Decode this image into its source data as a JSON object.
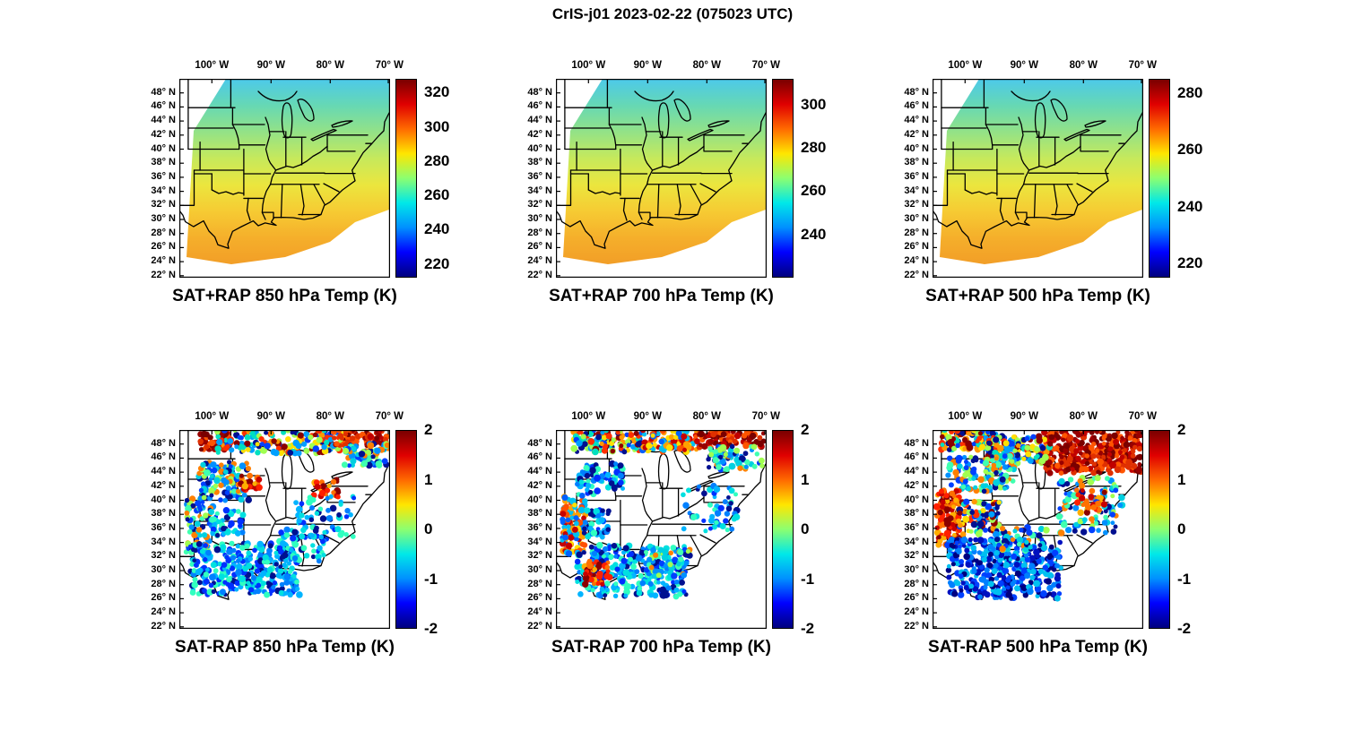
{
  "title": "CrIS-j01 2023-02-22 (075023 UTC)",
  "axes": {
    "lon_ticks": [
      "100° W",
      "90° W",
      "80° W",
      "70° W"
    ],
    "lat_ticks": [
      "48° N",
      "46° N",
      "44° N",
      "42° N",
      "40° N",
      "38° N",
      "36° N",
      "34° N",
      "32° N",
      "30° N",
      "28° N",
      "26° N",
      "24° N",
      "22° N"
    ]
  },
  "colors": {
    "jet": [
      "#7a0000",
      "#e00000",
      "#ff6a00",
      "#ffe600",
      "#8cff70",
      "#00e8e8",
      "#0090ff",
      "#0000ff",
      "#00007f"
    ],
    "field": [
      "#4cc9ea",
      "#66d8b4",
      "#93e287",
      "#c6e95c",
      "#ebe63e",
      "#f6cb33",
      "#f5af2b",
      "#f29e27"
    ],
    "palettes": {
      "warm": [
        "#8b0000",
        "#c80000",
        "#ff2000",
        "#ff7000",
        "#ffae00"
      ],
      "warm_dark": [
        "#7a0000",
        "#990000",
        "#c00000",
        "#e03000",
        "#ff5500"
      ],
      "cold": [
        "#001090",
        "#0030ff",
        "#0080ff",
        "#00b4ff",
        "#00e0e0",
        "#30ffc0"
      ],
      "cold_dark": [
        "#000080",
        "#0010c0",
        "#0040ff",
        "#0080ff",
        "#00c0f0"
      ],
      "mixed": [
        "#8b0000",
        "#ff3000",
        "#ff9900",
        "#ffe000",
        "#a0ff50",
        "#00e0c0",
        "#00a0ff",
        "#0040ff",
        "#001090"
      ],
      "mixed_cold": [
        "#0040ff",
        "#0090ff",
        "#00d0e0",
        "#40ffb0",
        "#a0ff50",
        "#001090",
        "#ff8000"
      ],
      "mixed_warm": [
        "#c80000",
        "#ff5000",
        "#ffa000",
        "#00c0f0",
        "#0060ff",
        "#ffe000"
      ]
    }
  },
  "chart_data": {
    "type": "heatmap",
    "figure_title": "CrIS-j01 2023-02-22 (075023 UTC)",
    "lon_range_deg_w": [
      105.5,
      70
    ],
    "lat_range_deg_n": [
      22,
      50
    ],
    "panels": [
      {
        "kind": "field",
        "title": "SAT+RAP 850 hPa Temp (K)",
        "colorbar": {
          "ticks": [
            320,
            300,
            280,
            260,
            240,
            220
          ],
          "range": [
            212,
            328
          ],
          "units": "K"
        }
      },
      {
        "kind": "field",
        "title": "SAT+RAP 700 hPa Temp (K)",
        "colorbar": {
          "ticks": [
            300,
            280,
            260,
            240
          ],
          "range": [
            220,
            312
          ],
          "units": "K"
        }
      },
      {
        "kind": "field",
        "title": "SAT+RAP 500 hPa Temp (K)",
        "colorbar": {
          "ticks": [
            280,
            260,
            240,
            220
          ],
          "range": [
            215,
            285
          ],
          "units": "K"
        }
      },
      {
        "kind": "scatter",
        "title": "SAT-RAP 850 hPa Temp (K)",
        "colorbar": {
          "ticks": [
            2,
            1,
            0,
            -1,
            -2
          ],
          "range": [
            -2,
            2
          ],
          "units": "K"
        },
        "regions": [
          {
            "x": 0.1,
            "y": 0.01,
            "w": 0.14,
            "h": 0.09,
            "palette": "warm_dark",
            "count": 60
          },
          {
            "x": 0.18,
            "y": 0.0,
            "w": 0.6,
            "h": 0.12,
            "palette": "mixed",
            "count": 170
          },
          {
            "x": 0.73,
            "y": 0.0,
            "w": 0.26,
            "h": 0.08,
            "palette": "warm_dark",
            "count": 80
          },
          {
            "x": 0.78,
            "y": 0.07,
            "w": 0.21,
            "h": 0.11,
            "palette": "mixed_cold",
            "count": 70
          },
          {
            "x": 0.09,
            "y": 0.16,
            "w": 0.24,
            "h": 0.2,
            "palette": "mixed_cold",
            "count": 110
          },
          {
            "x": 0.29,
            "y": 0.22,
            "w": 0.09,
            "h": 0.08,
            "palette": "warm",
            "count": 28
          },
          {
            "x": 0.03,
            "y": 0.34,
            "w": 0.13,
            "h": 0.28,
            "palette": "mixed_cold",
            "count": 80
          },
          {
            "x": 0.15,
            "y": 0.4,
            "w": 0.16,
            "h": 0.13,
            "palette": "cold",
            "count": 45
          },
          {
            "x": 0.63,
            "y": 0.25,
            "w": 0.13,
            "h": 0.09,
            "palette": "warm",
            "count": 26
          },
          {
            "x": 0.55,
            "y": 0.33,
            "w": 0.28,
            "h": 0.22,
            "palette": "cold",
            "count": 55
          },
          {
            "x": 0.05,
            "y": 0.57,
            "w": 0.52,
            "h": 0.26,
            "palette": "cold",
            "count": 330
          },
          {
            "x": 0.47,
            "y": 0.5,
            "w": 0.22,
            "h": 0.16,
            "palette": "cold",
            "count": 55
          }
        ]
      },
      {
        "kind": "scatter",
        "title": "SAT-RAP 700 hPa Temp (K)",
        "colorbar": {
          "ticks": [
            2,
            1,
            0,
            -1,
            -2
          ],
          "range": [
            -2,
            2
          ],
          "units": "K"
        },
        "regions": [
          {
            "x": 0.08,
            "y": 0.0,
            "w": 0.32,
            "h": 0.11,
            "palette": "mixed",
            "count": 130
          },
          {
            "x": 0.4,
            "y": 0.0,
            "w": 0.28,
            "h": 0.11,
            "palette": "mixed_warm",
            "count": 110
          },
          {
            "x": 0.67,
            "y": 0.0,
            "w": 0.32,
            "h": 0.09,
            "palette": "warm_dark",
            "count": 90
          },
          {
            "x": 0.72,
            "y": 0.08,
            "w": 0.26,
            "h": 0.12,
            "palette": "mixed_cold",
            "count": 70
          },
          {
            "x": 0.1,
            "y": 0.17,
            "w": 0.22,
            "h": 0.16,
            "palette": "cold",
            "count": 80
          },
          {
            "x": 0.03,
            "y": 0.33,
            "w": 0.11,
            "h": 0.3,
            "palette": "mixed_warm",
            "count": 120
          },
          {
            "x": 0.13,
            "y": 0.4,
            "w": 0.13,
            "h": 0.14,
            "palette": "cold",
            "count": 45
          },
          {
            "x": 0.6,
            "y": 0.28,
            "w": 0.26,
            "h": 0.24,
            "palette": "cold",
            "count": 50
          },
          {
            "x": 0.1,
            "y": 0.58,
            "w": 0.52,
            "h": 0.26,
            "palette": "cold",
            "count": 300
          },
          {
            "x": 0.13,
            "y": 0.65,
            "w": 0.13,
            "h": 0.13,
            "palette": "warm",
            "count": 40
          },
          {
            "x": 0.42,
            "y": 0.6,
            "w": 0.22,
            "h": 0.14,
            "palette": "mixed_cold",
            "count": 60
          }
        ]
      },
      {
        "kind": "scatter",
        "title": "SAT-RAP 500 hPa Temp (K)",
        "colorbar": {
          "ticks": [
            2,
            1,
            0,
            -1,
            -2
          ],
          "range": [
            -2,
            2
          ],
          "units": "K"
        },
        "regions": [
          {
            "x": 0.52,
            "y": 0.0,
            "w": 0.47,
            "h": 0.22,
            "palette": "warm_dark",
            "count": 380
          },
          {
            "x": 0.04,
            "y": 0.0,
            "w": 0.26,
            "h": 0.1,
            "palette": "mixed",
            "count": 100
          },
          {
            "x": 0.26,
            "y": 0.03,
            "w": 0.3,
            "h": 0.14,
            "palette": "mixed",
            "count": 150
          },
          {
            "x": 0.07,
            "y": 0.13,
            "w": 0.32,
            "h": 0.18,
            "palette": "mixed_cold",
            "count": 130
          },
          {
            "x": 0.02,
            "y": 0.3,
            "w": 0.11,
            "h": 0.28,
            "palette": "warm",
            "count": 120
          },
          {
            "x": 0.12,
            "y": 0.36,
            "w": 0.2,
            "h": 0.17,
            "palette": "mixed",
            "count": 90
          },
          {
            "x": 0.6,
            "y": 0.24,
            "w": 0.3,
            "h": 0.28,
            "palette": "mixed_cold",
            "count": 100
          },
          {
            "x": 0.68,
            "y": 0.3,
            "w": 0.14,
            "h": 0.12,
            "palette": "warm",
            "count": 30
          },
          {
            "x": 0.07,
            "y": 0.55,
            "w": 0.54,
            "h": 0.3,
            "palette": "cold_dark",
            "count": 400
          },
          {
            "x": 0.3,
            "y": 0.49,
            "w": 0.24,
            "h": 0.12,
            "palette": "mixed_cold",
            "count": 60
          }
        ]
      }
    ]
  }
}
